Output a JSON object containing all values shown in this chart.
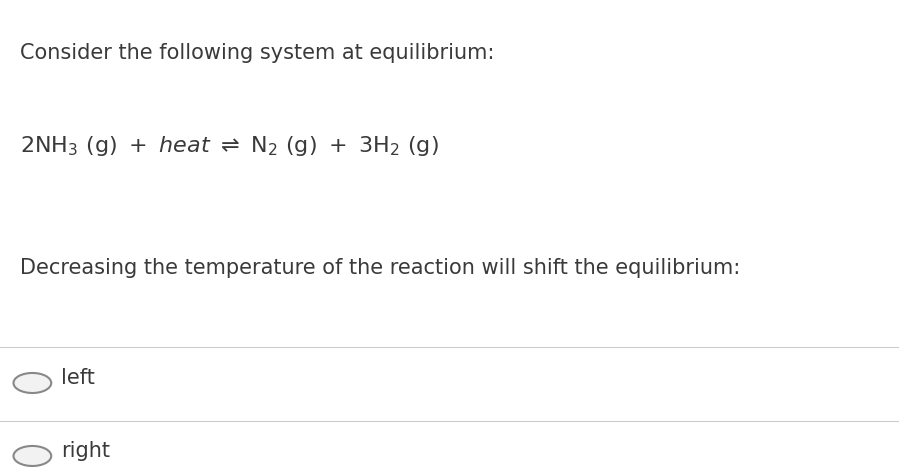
{
  "background_color": "#ffffff",
  "title_line": "Consider the following system at equilibrium:",
  "question_line": "Decreasing the temperature of the reaction will shift the equilibrium:",
  "options": [
    "left",
    "right"
  ],
  "text_color": "#3a3a3a",
  "line_color": "#cccccc",
  "circle_edge_color": "#888888",
  "circle_fill_color": "#f2f2f2",
  "font_size_title": 15,
  "font_size_equation": 16,
  "font_size_question": 15,
  "font_size_options": 15
}
